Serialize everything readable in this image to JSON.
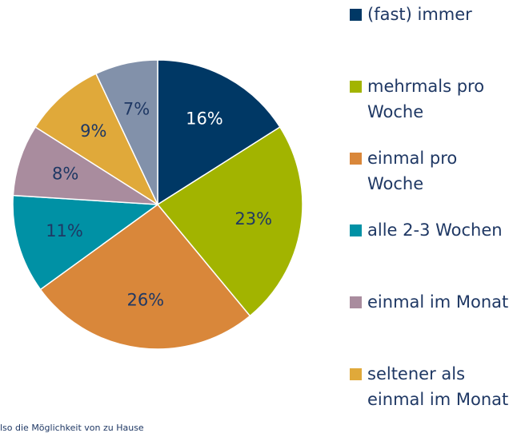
{
  "chart_data": {
    "type": "pie",
    "categories": [
      "(fast) immer",
      "mehrmals pro Woche",
      "einmal pro Woche",
      "alle 2-3 Wochen",
      "einmal im Monat",
      "seltener als einmal im Monat",
      null
    ],
    "values": [
      16,
      23,
      26,
      11,
      8,
      9,
      7
    ],
    "value_labels": [
      "16%",
      "23%",
      "26%",
      "11%",
      "8%",
      "9%",
      "7%"
    ],
    "colors": [
      "#003865",
      "#a2b400",
      "#d9873a",
      "#0091a5",
      "#a98c9e",
      "#e0a93a",
      "#8291aa"
    ],
    "label_colors": [
      "#ffffff",
      "#1f3864",
      "#1f3864",
      "#1f3864",
      "#1f3864",
      "#1f3864",
      "#1f3864"
    ],
    "note": "lso die Möglichkeit von zu Hause"
  }
}
